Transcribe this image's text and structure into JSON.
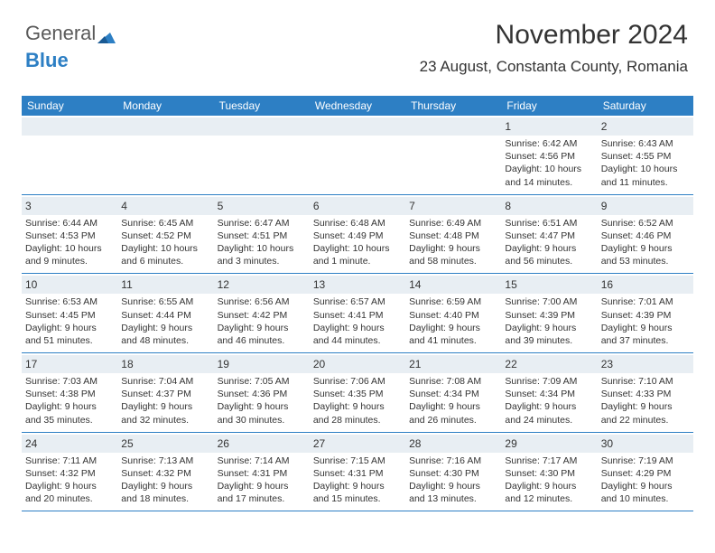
{
  "logo": {
    "part1": "General",
    "part2": "Blue"
  },
  "header": {
    "month": "November 2024",
    "location": "23 August, Constanta County, Romania"
  },
  "colors": {
    "header_bar": "#2d7fc4",
    "subhead_bg": "#e8eef3",
    "text": "#333333"
  },
  "day_names": [
    "Sunday",
    "Monday",
    "Tuesday",
    "Wednesday",
    "Thursday",
    "Friday",
    "Saturday"
  ],
  "weeks": [
    [
      {
        "num": "",
        "lines": []
      },
      {
        "num": "",
        "lines": []
      },
      {
        "num": "",
        "lines": []
      },
      {
        "num": "",
        "lines": []
      },
      {
        "num": "",
        "lines": []
      },
      {
        "num": "1",
        "lines": [
          "Sunrise: 6:42 AM",
          "Sunset: 4:56 PM",
          "Daylight: 10 hours",
          "and 14 minutes."
        ]
      },
      {
        "num": "2",
        "lines": [
          "Sunrise: 6:43 AM",
          "Sunset: 4:55 PM",
          "Daylight: 10 hours",
          "and 11 minutes."
        ]
      }
    ],
    [
      {
        "num": "3",
        "lines": [
          "Sunrise: 6:44 AM",
          "Sunset: 4:53 PM",
          "Daylight: 10 hours",
          "and 9 minutes."
        ]
      },
      {
        "num": "4",
        "lines": [
          "Sunrise: 6:45 AM",
          "Sunset: 4:52 PM",
          "Daylight: 10 hours",
          "and 6 minutes."
        ]
      },
      {
        "num": "5",
        "lines": [
          "Sunrise: 6:47 AM",
          "Sunset: 4:51 PM",
          "Daylight: 10 hours",
          "and 3 minutes."
        ]
      },
      {
        "num": "6",
        "lines": [
          "Sunrise: 6:48 AM",
          "Sunset: 4:49 PM",
          "Daylight: 10 hours",
          "and 1 minute."
        ]
      },
      {
        "num": "7",
        "lines": [
          "Sunrise: 6:49 AM",
          "Sunset: 4:48 PM",
          "Daylight: 9 hours",
          "and 58 minutes."
        ]
      },
      {
        "num": "8",
        "lines": [
          "Sunrise: 6:51 AM",
          "Sunset: 4:47 PM",
          "Daylight: 9 hours",
          "and 56 minutes."
        ]
      },
      {
        "num": "9",
        "lines": [
          "Sunrise: 6:52 AM",
          "Sunset: 4:46 PM",
          "Daylight: 9 hours",
          "and 53 minutes."
        ]
      }
    ],
    [
      {
        "num": "10",
        "lines": [
          "Sunrise: 6:53 AM",
          "Sunset: 4:45 PM",
          "Daylight: 9 hours",
          "and 51 minutes."
        ]
      },
      {
        "num": "11",
        "lines": [
          "Sunrise: 6:55 AM",
          "Sunset: 4:44 PM",
          "Daylight: 9 hours",
          "and 48 minutes."
        ]
      },
      {
        "num": "12",
        "lines": [
          "Sunrise: 6:56 AM",
          "Sunset: 4:42 PM",
          "Daylight: 9 hours",
          "and 46 minutes."
        ]
      },
      {
        "num": "13",
        "lines": [
          "Sunrise: 6:57 AM",
          "Sunset: 4:41 PM",
          "Daylight: 9 hours",
          "and 44 minutes."
        ]
      },
      {
        "num": "14",
        "lines": [
          "Sunrise: 6:59 AM",
          "Sunset: 4:40 PM",
          "Daylight: 9 hours",
          "and 41 minutes."
        ]
      },
      {
        "num": "15",
        "lines": [
          "Sunrise: 7:00 AM",
          "Sunset: 4:39 PM",
          "Daylight: 9 hours",
          "and 39 minutes."
        ]
      },
      {
        "num": "16",
        "lines": [
          "Sunrise: 7:01 AM",
          "Sunset: 4:39 PM",
          "Daylight: 9 hours",
          "and 37 minutes."
        ]
      }
    ],
    [
      {
        "num": "17",
        "lines": [
          "Sunrise: 7:03 AM",
          "Sunset: 4:38 PM",
          "Daylight: 9 hours",
          "and 35 minutes."
        ]
      },
      {
        "num": "18",
        "lines": [
          "Sunrise: 7:04 AM",
          "Sunset: 4:37 PM",
          "Daylight: 9 hours",
          "and 32 minutes."
        ]
      },
      {
        "num": "19",
        "lines": [
          "Sunrise: 7:05 AM",
          "Sunset: 4:36 PM",
          "Daylight: 9 hours",
          "and 30 minutes."
        ]
      },
      {
        "num": "20",
        "lines": [
          "Sunrise: 7:06 AM",
          "Sunset: 4:35 PM",
          "Daylight: 9 hours",
          "and 28 minutes."
        ]
      },
      {
        "num": "21",
        "lines": [
          "Sunrise: 7:08 AM",
          "Sunset: 4:34 PM",
          "Daylight: 9 hours",
          "and 26 minutes."
        ]
      },
      {
        "num": "22",
        "lines": [
          "Sunrise: 7:09 AM",
          "Sunset: 4:34 PM",
          "Daylight: 9 hours",
          "and 24 minutes."
        ]
      },
      {
        "num": "23",
        "lines": [
          "Sunrise: 7:10 AM",
          "Sunset: 4:33 PM",
          "Daylight: 9 hours",
          "and 22 minutes."
        ]
      }
    ],
    [
      {
        "num": "24",
        "lines": [
          "Sunrise: 7:11 AM",
          "Sunset: 4:32 PM",
          "Daylight: 9 hours",
          "and 20 minutes."
        ]
      },
      {
        "num": "25",
        "lines": [
          "Sunrise: 7:13 AM",
          "Sunset: 4:32 PM",
          "Daylight: 9 hours",
          "and 18 minutes."
        ]
      },
      {
        "num": "26",
        "lines": [
          "Sunrise: 7:14 AM",
          "Sunset: 4:31 PM",
          "Daylight: 9 hours",
          "and 17 minutes."
        ]
      },
      {
        "num": "27",
        "lines": [
          "Sunrise: 7:15 AM",
          "Sunset: 4:31 PM",
          "Daylight: 9 hours",
          "and 15 minutes."
        ]
      },
      {
        "num": "28",
        "lines": [
          "Sunrise: 7:16 AM",
          "Sunset: 4:30 PM",
          "Daylight: 9 hours",
          "and 13 minutes."
        ]
      },
      {
        "num": "29",
        "lines": [
          "Sunrise: 7:17 AM",
          "Sunset: 4:30 PM",
          "Daylight: 9 hours",
          "and 12 minutes."
        ]
      },
      {
        "num": "30",
        "lines": [
          "Sunrise: 7:19 AM",
          "Sunset: 4:29 PM",
          "Daylight: 9 hours",
          "and 10 minutes."
        ]
      }
    ]
  ]
}
